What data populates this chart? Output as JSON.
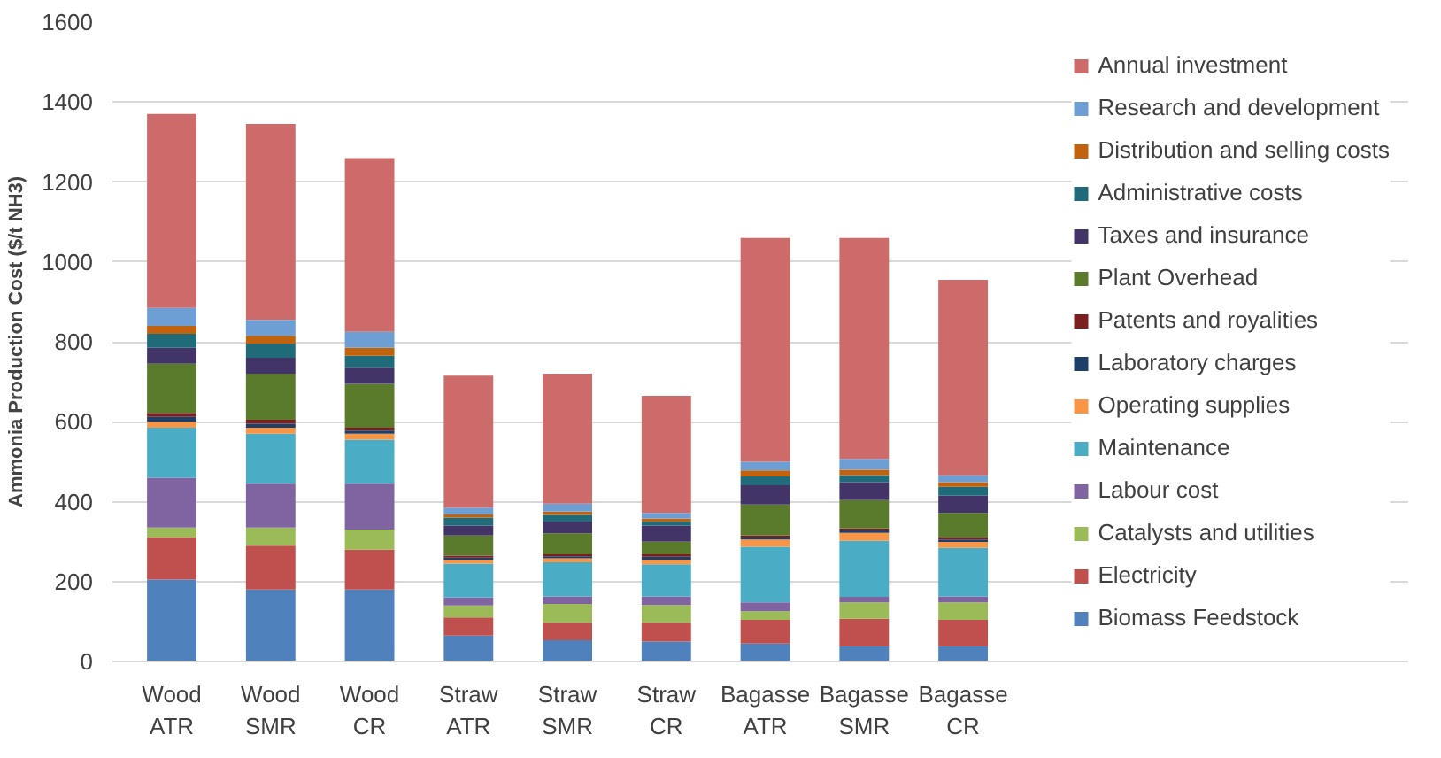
{
  "chart_data": {
    "type": "bar",
    "stacked": true,
    "ylabel": "Ammonia Production Cost ($/t NH3)",
    "categories": [
      "Wood ATR",
      "Wood SMR",
      "Wood CR",
      "Straw ATR",
      "Straw SMR",
      "Straw CR",
      "Bagasse ATR",
      "Bagasse SMR",
      "Bagasse CR"
    ],
    "ylim": [
      0,
      1600
    ],
    "yticks": [
      0,
      200,
      400,
      600,
      800,
      1000,
      1200,
      1400,
      1600
    ],
    "grid": "y",
    "legend": "right",
    "series": [
      {
        "name": "Biomass Feedstock",
        "color": "#4f81bd",
        "values": [
          205,
          180,
          180,
          65,
          53,
          50,
          45,
          38,
          38
        ]
      },
      {
        "name": "Electricity",
        "color": "#c0504d",
        "values": [
          105,
          110,
          100,
          45,
          44,
          47,
          59,
          69,
          66
        ]
      },
      {
        "name": "Catalysts and utilities",
        "color": "#9bbb59",
        "values": [
          25,
          45,
          50,
          30,
          47,
          44,
          22,
          41,
          44
        ]
      },
      {
        "name": "Labour cost",
        "color": "#8064a2",
        "values": [
          125,
          110,
          115,
          20,
          19,
          22,
          22,
          14,
          15
        ]
      },
      {
        "name": "Maintenance",
        "color": "#4bacc6",
        "values": [
          125,
          125,
          110,
          85,
          85,
          80,
          139,
          140,
          121
        ]
      },
      {
        "name": "Operating supplies",
        "color": "#f79646",
        "values": [
          15,
          15,
          15,
          10,
          10,
          12,
          18,
          20,
          15
        ]
      },
      {
        "name": "Laboratory charges",
        "color": "#1f3f6b",
        "values": [
          12,
          10,
          8,
          5,
          5,
          7,
          5,
          6,
          6
        ]
      },
      {
        "name": "Patents and royalities",
        "color": "#7a2020",
        "values": [
          10,
          10,
          7,
          5,
          5,
          6,
          5,
          5,
          5
        ]
      },
      {
        "name": "Plant Overhead",
        "color": "#5a7a2c",
        "values": [
          123,
          115,
          110,
          50,
          53,
          32,
          78,
          71,
          62
        ]
      },
      {
        "name": "Taxes and insurance",
        "color": "#433468",
        "values": [
          40,
          40,
          40,
          25,
          29,
          40,
          48,
          44,
          43
        ]
      },
      {
        "name": "Administrative costs",
        "color": "#1f6b7a",
        "values": [
          35,
          35,
          30,
          20,
          17,
          10,
          22,
          18,
          22
        ]
      },
      {
        "name": "Distribution and selling costs",
        "color": "#c0620e",
        "values": [
          20,
          20,
          20,
          8,
          8,
          8,
          15,
          14,
          11
        ]
      },
      {
        "name": "Research and development",
        "color": "#6e9fd4",
        "values": [
          45,
          40,
          40,
          17,
          20,
          14,
          22,
          27,
          18
        ]
      },
      {
        "name": "Annual investment",
        "color": "#cd6b6b",
        "values": [
          485,
          490,
          435,
          330,
          325,
          293,
          560,
          553,
          489
        ]
      }
    ]
  }
}
